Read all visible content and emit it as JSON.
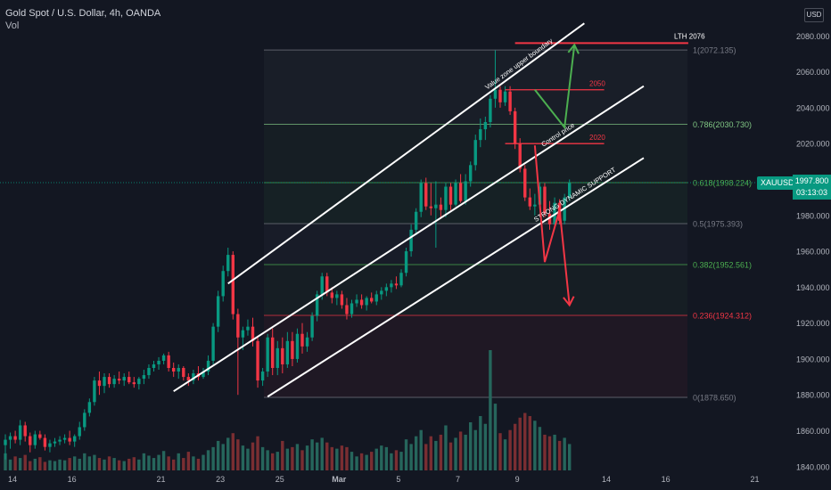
{
  "header": {
    "title": "Gold Spot / U.S. Dollar, 4h, OANDA",
    "indicator": "Vol"
  },
  "currency_badge": "USD",
  "symbol_badge": "XAUUSD",
  "last_price": {
    "price": "1997.800",
    "countdown": "03:13:03"
  },
  "colors": {
    "background": "#131722",
    "up": "#089981",
    "down": "#f23645",
    "vol_up": "#26665c",
    "vol_down": "#7a2e32",
    "fib_neutral": "#787b86",
    "fib_786": "#81c784",
    "fib_618": "#4caf50",
    "fib_382": "#4caf50",
    "fib_236": "#f23645",
    "annotation_red": "#f23645",
    "annotation_green": "#4caf50",
    "channel": "#ffffff"
  },
  "chart_data": {
    "type": "candlestick",
    "symbol": "XAUUSD",
    "timeframe": "4h",
    "y_axis": {
      "range": [
        1827,
        2100
      ],
      "ticks": [
        1840,
        1860,
        1880,
        1900,
        1920,
        1940,
        1960,
        1980,
        2000,
        2020,
        2040,
        2060,
        2080
      ],
      "labels": [
        "1840.000",
        "1860.000",
        "1880.000",
        "1900.000",
        "1920.000",
        "1940.000",
        "1960.000",
        "1980.000",
        "2000.000",
        "2020.000",
        "2040.000",
        "2060.000",
        "2080.000"
      ]
    },
    "x_axis": {
      "labels": [
        "14",
        "16",
        "21",
        "23",
        "25",
        "Mar",
        "5",
        "7",
        "9",
        "14",
        "16",
        "21"
      ],
      "label_bars": [
        0,
        12,
        30,
        42,
        54,
        66,
        78,
        90,
        102,
        120,
        132,
        150
      ]
    },
    "grid": false,
    "candles": [
      [
        1852,
        1858,
        1844,
        1855
      ],
      [
        1855,
        1859,
        1850,
        1857
      ],
      [
        1857,
        1860,
        1853,
        1855
      ],
      [
        1855,
        1866,
        1852,
        1863
      ],
      [
        1863,
        1865,
        1854,
        1857
      ],
      [
        1857,
        1859,
        1848,
        1852
      ],
      [
        1852,
        1860,
        1850,
        1858
      ],
      [
        1858,
        1860,
        1855,
        1856
      ],
      [
        1856,
        1858,
        1849,
        1851
      ],
      [
        1851,
        1855,
        1848,
        1853
      ],
      [
        1853,
        1856,
        1851,
        1854
      ],
      [
        1854,
        1857,
        1852,
        1855
      ],
      [
        1855,
        1858,
        1853,
        1856
      ],
      [
        1856,
        1860,
        1852,
        1854
      ],
      [
        1854,
        1858,
        1851,
        1857
      ],
      [
        1857,
        1865,
        1855,
        1862
      ],
      [
        1862,
        1872,
        1860,
        1870
      ],
      [
        1870,
        1878,
        1868,
        1876
      ],
      [
        1876,
        1890,
        1874,
        1888
      ],
      [
        1888,
        1893,
        1880,
        1885
      ],
      [
        1885,
        1892,
        1881,
        1890
      ],
      [
        1890,
        1892,
        1884,
        1886
      ],
      [
        1886,
        1891,
        1884,
        1889
      ],
      [
        1889,
        1893,
        1886,
        1888
      ],
      [
        1888,
        1892,
        1885,
        1890
      ],
      [
        1890,
        1893,
        1886,
        1887
      ],
      [
        1887,
        1890,
        1884,
        1886
      ],
      [
        1886,
        1890,
        1883,
        1889
      ],
      [
        1889,
        1894,
        1886,
        1891
      ],
      [
        1891,
        1897,
        1889,
        1895
      ],
      [
        1895,
        1899,
        1893,
        1897
      ],
      [
        1897,
        1901,
        1894,
        1899
      ],
      [
        1899,
        1903,
        1897,
        1902
      ],
      [
        1902,
        1904,
        1893,
        1895
      ],
      [
        1895,
        1898,
        1890,
        1893
      ],
      [
        1893,
        1897,
        1889,
        1895
      ],
      [
        1895,
        1896,
        1888,
        1890
      ],
      [
        1890,
        1892,
        1885,
        1888
      ],
      [
        1888,
        1894,
        1886,
        1892
      ],
      [
        1892,
        1896,
        1888,
        1890
      ],
      [
        1890,
        1895,
        1889,
        1893
      ],
      [
        1893,
        1902,
        1891,
        1899
      ],
      [
        1899,
        1920,
        1897,
        1918
      ],
      [
        1918,
        1938,
        1915,
        1935
      ],
      [
        1935,
        1952,
        1932,
        1949
      ],
      [
        1949,
        1962,
        1946,
        1958
      ],
      [
        1958,
        1960,
        1922,
        1925
      ],
      [
        1925,
        1928,
        1880,
        1912
      ],
      [
        1912,
        1918,
        1905,
        1916
      ],
      [
        1916,
        1922,
        1913,
        1918
      ],
      [
        1918,
        1923,
        1907,
        1910
      ],
      [
        1910,
        1912,
        1884,
        1888
      ],
      [
        1888,
        1895,
        1885,
        1893
      ],
      [
        1893,
        1914,
        1890,
        1912
      ],
      [
        1912,
        1917,
        1891,
        1895
      ],
      [
        1895,
        1910,
        1891,
        1906
      ],
      [
        1906,
        1912,
        1892,
        1897
      ],
      [
        1897,
        1915,
        1895,
        1910
      ],
      [
        1910,
        1915,
        1896,
        1900
      ],
      [
        1900,
        1917,
        1898,
        1914
      ],
      [
        1914,
        1920,
        1903,
        1907
      ],
      [
        1907,
        1915,
        1904,
        1912
      ],
      [
        1912,
        1926,
        1910,
        1924
      ],
      [
        1924,
        1938,
        1921,
        1936
      ],
      [
        1936,
        1948,
        1933,
        1946
      ],
      [
        1946,
        1948,
        1935,
        1937
      ],
      [
        1937,
        1940,
        1931,
        1934
      ],
      [
        1934,
        1938,
        1930,
        1936
      ],
      [
        1936,
        1938,
        1928,
        1930
      ],
      [
        1930,
        1934,
        1922,
        1925
      ],
      [
        1925,
        1933,
        1923,
        1931
      ],
      [
        1931,
        1936,
        1929,
        1933
      ],
      [
        1933,
        1936,
        1928,
        1930
      ],
      [
        1930,
        1935,
        1927,
        1934
      ],
      [
        1934,
        1937,
        1931,
        1932
      ],
      [
        1932,
        1938,
        1930,
        1936
      ],
      [
        1936,
        1940,
        1933,
        1938
      ],
      [
        1938,
        1942,
        1935,
        1940
      ],
      [
        1940,
        1944,
        1937,
        1942
      ],
      [
        1942,
        1946,
        1939,
        1941
      ],
      [
        1941,
        1950,
        1940,
        1948
      ],
      [
        1948,
        1962,
        1946,
        1960
      ],
      [
        1960,
        1975,
        1957,
        1972
      ],
      [
        1972,
        1984,
        1969,
        1982
      ],
      [
        1982,
        2000,
        1979,
        1998
      ],
      [
        1998,
        2001,
        1983,
        1985
      ],
      [
        1985,
        1998,
        1980,
        1984
      ],
      [
        1984,
        1999,
        1962,
        1986
      ],
      [
        1986,
        1990,
        1978,
        1983
      ],
      [
        1983,
        1998,
        1979,
        1996
      ],
      [
        1996,
        1998,
        1983,
        1986
      ],
      [
        1986,
        2000,
        1985,
        1998
      ],
      [
        1998,
        2003,
        1987,
        1988
      ],
      [
        1988,
        2003,
        1986,
        1999
      ],
      [
        1999,
        2010,
        1996,
        2008
      ],
      [
        2008,
        2025,
        2005,
        2022
      ],
      [
        2022,
        2034,
        2018,
        2028
      ],
      [
        2028,
        2035,
        2022,
        2032
      ],
      [
        2032,
        2047,
        2029,
        2045
      ],
      [
        2045,
        2072,
        2040,
        2050
      ],
      [
        2050,
        2052,
        2040,
        2043
      ],
      [
        2043,
        2052,
        2041,
        2049
      ],
      [
        2049,
        2052,
        2036,
        2038
      ],
      [
        2038,
        2040,
        2017,
        2020
      ],
      [
        2020,
        2023,
        2004,
        2006
      ],
      [
        2006,
        2008,
        1988,
        1990
      ],
      [
        1990,
        1995,
        1983,
        1985
      ],
      [
        1985,
        1992,
        1980,
        1986
      ],
      [
        1986,
        1998,
        1984,
        1996
      ],
      [
        1996,
        1998,
        1979,
        1981
      ],
      [
        1981,
        1988,
        1972,
        1975
      ],
      [
        1975,
        1990,
        1974,
        1987
      ],
      [
        1987,
        1989,
        1975,
        1977
      ],
      [
        1977,
        1992,
        1975,
        1990
      ],
      [
        1990,
        2000,
        1988,
        1998
      ]
    ],
    "volume": [
      22,
      14,
      18,
      16,
      20,
      12,
      15,
      17,
      11,
      13,
      12,
      14,
      13,
      16,
      18,
      15,
      22,
      18,
      20,
      16,
      14,
      18,
      16,
      13,
      12,
      15,
      17,
      14,
      22,
      19,
      16,
      20,
      25,
      18,
      14,
      22,
      16,
      24,
      18,
      15,
      20,
      26,
      30,
      38,
      34,
      42,
      48,
      40,
      32,
      28,
      36,
      44,
      30,
      26,
      22,
      24,
      38,
      28,
      30,
      34,
      26,
      32,
      40,
      36,
      42,
      36,
      30,
      28,
      32,
      30,
      24,
      18,
      22,
      20,
      24,
      28,
      32,
      30,
      22,
      26,
      24,
      40,
      34,
      44,
      52,
      34,
      44,
      38,
      46,
      58,
      36,
      42,
      50,
      46,
      62,
      52,
      70,
      60,
      155,
      86,
      48,
      40,
      52,
      60,
      68,
      74,
      70,
      64,
      56,
      46,
      44,
      46,
      38,
      42,
      34
    ],
    "fibonacci": [
      {
        "level": "1",
        "price": 2072.135,
        "label": "1(2072.135)"
      },
      {
        "level": "0.786",
        "price": 2030.73,
        "label": "0.786(2030.730)"
      },
      {
        "level": "0.618",
        "price": 1998.224,
        "label": "0.618(1998.224)"
      },
      {
        "level": "0.5",
        "price": 1975.393,
        "label": "0.5(1975.393)"
      },
      {
        "level": "0.382",
        "price": 1952.561,
        "label": "0.382(1952.561)"
      },
      {
        "level": "0.236",
        "price": 1924.312,
        "label": "0.236(1924.312)"
      },
      {
        "level": "0",
        "price": 1878.65,
        "label": "0(1878.650)"
      }
    ],
    "horizontal_levels": [
      {
        "label": "LTH 2076",
        "price": 2076
      },
      {
        "label": "2050",
        "price": 2050
      },
      {
        "label": "2020",
        "price": 2020
      }
    ],
    "trendlines": [
      {
        "label": "Value zone upper boundary",
        "from": [
          45,
          1942
        ],
        "to": [
          117,
          2087
        ]
      },
      {
        "label": "Control price",
        "from": [
          34,
          1882
        ],
        "to": [
          129,
          2052
        ]
      },
      {
        "label": "STRONG DYNAMIC SUPPORT",
        "from": [
          53,
          1879
        ],
        "to": [
          129,
          2012
        ]
      }
    ],
    "projections": [
      {
        "direction": "up",
        "points": [
          [
            107,
            2050
          ],
          [
            113,
            2029
          ],
          [
            115,
            2075
          ]
        ]
      },
      {
        "direction": "down",
        "points": [
          [
            107,
            2019
          ],
          [
            109,
            1954
          ],
          [
            112,
            1983
          ],
          [
            114,
            1930
          ]
        ]
      }
    ]
  }
}
